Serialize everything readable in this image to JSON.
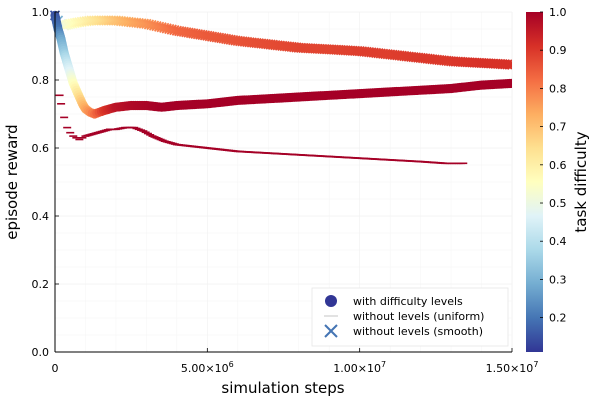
{
  "chart_data": {
    "type": "scatter",
    "xlabel": "simulation steps",
    "ylabel": "episode reward",
    "xlim": [
      0,
      15000000
    ],
    "ylim": [
      0,
      1
    ],
    "grid": true,
    "legend_position": "bottom-right",
    "x_ticks": [
      {
        "value": 0,
        "mantissa": "0",
        "exponent": ""
      },
      {
        "value": 5000000,
        "mantissa": "5.00×10",
        "exponent": "6"
      },
      {
        "value": 10000000,
        "mantissa": "1.00×10",
        "exponent": "7"
      },
      {
        "value": 15000000,
        "mantissa": "1.50×10",
        "exponent": "7"
      }
    ],
    "y_ticks": [
      {
        "value": 0.0,
        "label": "0.0"
      },
      {
        "value": 0.2,
        "label": "0.2"
      },
      {
        "value": 0.4,
        "label": "0.4"
      },
      {
        "value": 0.6,
        "label": "0.6"
      },
      {
        "value": 0.8,
        "label": "0.8"
      },
      {
        "value": 1.0,
        "label": "1.0"
      }
    ],
    "colorbar": {
      "label": "task difficulty",
      "range": [
        0.11,
        1.0
      ],
      "ticks": [
        {
          "value": 0.2,
          "label": "0.2"
        },
        {
          "value": 0.3,
          "label": "0.3"
        },
        {
          "value": 0.4,
          "label": "0.4"
        },
        {
          "value": 0.5,
          "label": "0.5"
        },
        {
          "value": 0.6,
          "label": "0.6"
        },
        {
          "value": 0.7,
          "label": "0.7"
        },
        {
          "value": 0.8,
          "label": "0.8"
        },
        {
          "value": 0.9,
          "label": "0.9"
        },
        {
          "value": 1.0,
          "label": "1.0"
        }
      ],
      "colormap": [
        "#313695",
        "#4575b4",
        "#74add1",
        "#abd9e9",
        "#e0f3f8",
        "#ffffbf",
        "#fee090",
        "#fdae61",
        "#f46d43",
        "#d73027",
        "#a50026"
      ]
    },
    "series": [
      {
        "name": "with difficulty levels",
        "marker": "circle",
        "legend_color": "#313695",
        "points": [
          [
            0,
            0.99,
            0.15
          ],
          [
            100000,
            0.95,
            0.2
          ],
          [
            200000,
            0.92,
            0.28
          ],
          [
            300000,
            0.88,
            0.35
          ],
          [
            400000,
            0.85,
            0.42
          ],
          [
            500000,
            0.82,
            0.48
          ],
          [
            600000,
            0.79,
            0.55
          ],
          [
            700000,
            0.77,
            0.6
          ],
          [
            800000,
            0.75,
            0.65
          ],
          [
            900000,
            0.73,
            0.7
          ],
          [
            1000000,
            0.715,
            0.74
          ],
          [
            1150000,
            0.705,
            0.78
          ],
          [
            1300000,
            0.7,
            0.82
          ],
          [
            1450000,
            0.705,
            0.86
          ],
          [
            1600000,
            0.71,
            0.9
          ],
          [
            1800000,
            0.715,
            0.93
          ],
          [
            2000000,
            0.72,
            0.96
          ],
          [
            2500000,
            0.725,
            0.98
          ],
          [
            3000000,
            0.725,
            0.99
          ],
          [
            3500000,
            0.72,
            1.0
          ],
          [
            4000000,
            0.725,
            1.0
          ],
          [
            5000000,
            0.73,
            1.0
          ],
          [
            6000000,
            0.74,
            1.0
          ],
          [
            7000000,
            0.745,
            1.0
          ],
          [
            8000000,
            0.75,
            1.0
          ],
          [
            9000000,
            0.755,
            1.0
          ],
          [
            10000000,
            0.76,
            1.0
          ],
          [
            11000000,
            0.765,
            1.0
          ],
          [
            12000000,
            0.77,
            1.0
          ],
          [
            13000000,
            0.775,
            1.0
          ],
          [
            14000000,
            0.785,
            1.0
          ],
          [
            15000000,
            0.79,
            1.0
          ]
        ]
      },
      {
        "name": "without levels (uniform)",
        "marker": "hline",
        "color": "#a50026",
        "points": [
          [
            150000,
            0.755
          ],
          [
            200000,
            0.73
          ],
          [
            300000,
            0.69
          ],
          [
            400000,
            0.66
          ],
          [
            500000,
            0.645
          ],
          [
            600000,
            0.635
          ],
          [
            700000,
            0.63
          ],
          [
            800000,
            0.625
          ],
          [
            900000,
            0.63
          ],
          [
            1000000,
            0.635
          ],
          [
            1200000,
            0.64
          ],
          [
            1400000,
            0.645
          ],
          [
            1600000,
            0.65
          ],
          [
            1800000,
            0.655
          ],
          [
            2000000,
            0.655
          ],
          [
            2300000,
            0.66
          ],
          [
            2600000,
            0.66
          ],
          [
            2900000,
            0.65
          ],
          [
            3200000,
            0.635
          ],
          [
            3600000,
            0.62
          ],
          [
            4000000,
            0.61
          ],
          [
            5000000,
            0.6
          ],
          [
            6000000,
            0.59
          ],
          [
            7000000,
            0.585
          ],
          [
            8000000,
            0.58
          ],
          [
            9000000,
            0.575
          ],
          [
            10000000,
            0.57
          ],
          [
            11000000,
            0.565
          ],
          [
            12000000,
            0.56
          ],
          [
            12800000,
            0.555
          ],
          [
            13400000,
            0.555
          ]
        ]
      },
      {
        "name": "without levels (smooth)",
        "marker": "cross",
        "legend_color": "#4575b4",
        "points": [
          [
            0,
            0.99,
            0.15
          ],
          [
            100000,
            0.975,
            0.3
          ],
          [
            200000,
            0.965,
            0.45
          ],
          [
            300000,
            0.96,
            0.52
          ],
          [
            500000,
            0.965,
            0.55
          ],
          [
            800000,
            0.97,
            0.58
          ],
          [
            1200000,
            0.975,
            0.62
          ],
          [
            1600000,
            0.975,
            0.66
          ],
          [
            2000000,
            0.975,
            0.7
          ],
          [
            2500000,
            0.97,
            0.74
          ],
          [
            3000000,
            0.965,
            0.77
          ],
          [
            3500000,
            0.955,
            0.8
          ],
          [
            4000000,
            0.945,
            0.83
          ],
          [
            5000000,
            0.93,
            0.85
          ],
          [
            6000000,
            0.915,
            0.86
          ],
          [
            7000000,
            0.905,
            0.87
          ],
          [
            8000000,
            0.895,
            0.88
          ],
          [
            9000000,
            0.89,
            0.88
          ],
          [
            10000000,
            0.885,
            0.89
          ],
          [
            11000000,
            0.875,
            0.89
          ],
          [
            12000000,
            0.865,
            0.9
          ],
          [
            13000000,
            0.855,
            0.9
          ],
          [
            14000000,
            0.85,
            0.91
          ],
          [
            15000000,
            0.845,
            0.91
          ]
        ]
      }
    ]
  }
}
